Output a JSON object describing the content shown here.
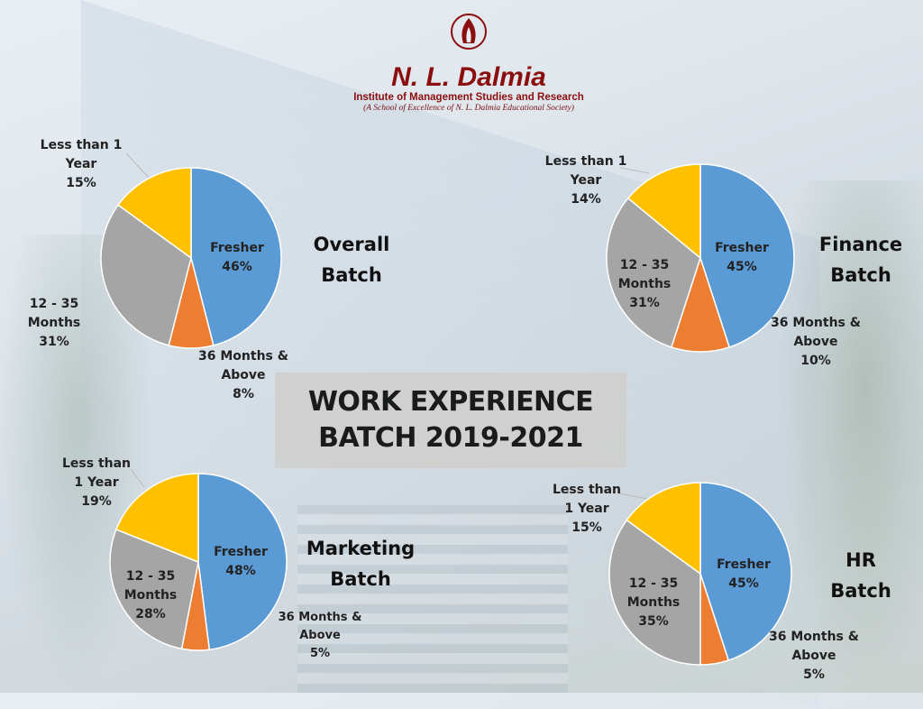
{
  "logo": {
    "name": "N. L. Dalmia",
    "institute": "Institute of Management Studies and Research",
    "tagline": "(A School of Excellence of N. L. Dalmia Educational Society)"
  },
  "title": {
    "line1": "WORK EXPERIENCE",
    "line2": "BATCH 2019-2021"
  },
  "colors": {
    "Fresher": "#5b9bd5",
    "36 Months & Above": "#ed7d31",
    "12 - 35 Months": "#a5a5a5",
    "Less than 1 Year": "#ffc000"
  },
  "chart_data": [
    {
      "type": "pie",
      "title_line1": "Overall",
      "title_line2": "Batch",
      "categories": [
        "Fresher",
        "36 Months & Above",
        "12 - 35 Months",
        "Less than 1 Year"
      ],
      "values": [
        46,
        8,
        31,
        15
      ],
      "labels": [
        "Fresher\n46%",
        "36 Months &\nAbove\n8%",
        "12 - 35\nMonths\n31%",
        "Less than 1\nYear\n15%"
      ]
    },
    {
      "type": "pie",
      "title_line1": "Finance",
      "title_line2": "Batch",
      "categories": [
        "Fresher",
        "36 Months & Above",
        "12 - 35 Months",
        "Less than 1 Year"
      ],
      "values": [
        45,
        10,
        31,
        14
      ],
      "labels": [
        "Fresher\n45%",
        "36 Months &\nAbove\n10%",
        "12 - 35\nMonths\n31%",
        "Less than 1\nYear\n14%"
      ]
    },
    {
      "type": "pie",
      "title_line1": "Marketing",
      "title_line2": "Batch",
      "categories": [
        "Fresher",
        "36 Months & Above",
        "12 - 35 Months",
        "Less than 1 Year"
      ],
      "values": [
        48,
        5,
        28,
        19
      ],
      "labels": [
        "Fresher\n48%",
        "36 Months &\nAbove\n5%",
        "12 - 35\nMonths\n28%",
        "Less than\n1 Year\n19%"
      ]
    },
    {
      "type": "pie",
      "title_line1": "HR",
      "title_line2": "Batch",
      "categories": [
        "Fresher",
        "36 Months & Above",
        "12 - 35 Months",
        "Less than 1 Year"
      ],
      "values": [
        45,
        5,
        35,
        15
      ],
      "labels": [
        "Fresher\n45%",
        "36 Months &\nAbove\n5%",
        "12 - 35\nMonths\n35%",
        "Less than\n1 Year\n15%"
      ]
    }
  ]
}
